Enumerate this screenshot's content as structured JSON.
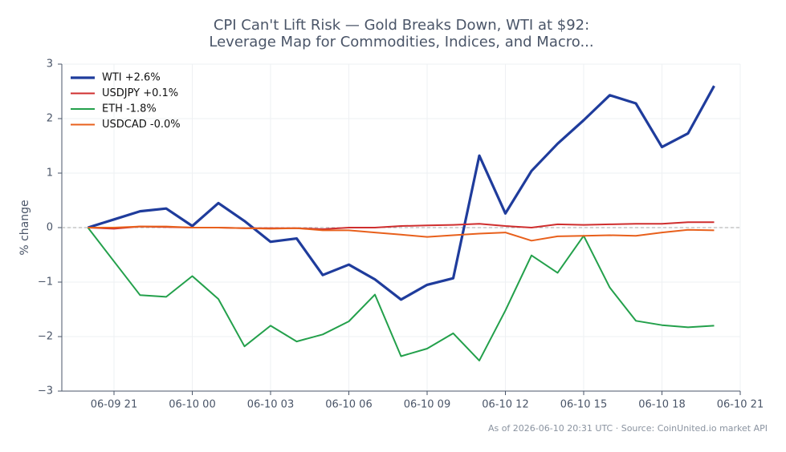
{
  "chart_data": {
    "type": "line",
    "title": [
      "CPI Can't Lift Risk — Gold Breaks Down, WTI at $92:",
      "Leverage Map for Commodities, Indices, and Macro..."
    ],
    "ylabel": "% change",
    "footer": "As of 2026-06-10 20:31 UTC · Source: CoinUnited.io market API",
    "x": [
      "06-09 20",
      "06-09 21",
      "06-09 22",
      "06-09 23",
      "06-10 00",
      "06-10 01",
      "06-10 02",
      "06-10 03",
      "06-10 04",
      "06-10 05",
      "06-10 06",
      "06-10 07",
      "06-10 08",
      "06-10 09",
      "06-10 10",
      "06-10 11",
      "06-10 12",
      "06-10 13",
      "06-10 14",
      "06-10 15",
      "06-10 16",
      "06-10 17",
      "06-10 18",
      "06-10 19",
      "06-10 20"
    ],
    "xlim": [
      "06-09 19",
      "06-10 21"
    ],
    "xticks": [
      "06-09 21",
      "06-10 00",
      "06-10 03",
      "06-10 06",
      "06-10 09",
      "06-10 12",
      "06-10 15",
      "06-10 18",
      "06-10 21"
    ],
    "ylim": [
      -3,
      3
    ],
    "yticks": [
      {
        "value": -3,
        "label": "−3"
      },
      {
        "value": -2,
        "label": "−2"
      },
      {
        "value": -1,
        "label": "−1"
      },
      0,
      1,
      2,
      3
    ],
    "grid": true,
    "hline": 0,
    "legend": "upper left",
    "series": [
      {
        "name": "WTI +2.6%",
        "color": "#1f3c9c",
        "width": 3.2,
        "values": [
          0,
          0.15,
          0.3,
          0.35,
          0.03,
          0.45,
          0.12,
          -0.26,
          -0.2,
          -0.87,
          -0.68,
          -0.95,
          -1.32,
          -1.05,
          -0.93,
          1.32,
          0.26,
          1.04,
          1.54,
          1.97,
          2.43,
          2.28,
          1.48,
          1.73,
          2.6
        ]
      },
      {
        "name": "USDJPY +0.1%",
        "color": "#cf2e2e",
        "width": 2,
        "values": [
          0,
          -0.02,
          0.02,
          0.01,
          0,
          0,
          -0.01,
          -0.01,
          -0.01,
          -0.03,
          0,
          0,
          0.03,
          0.04,
          0.05,
          0.07,
          0.03,
          0,
          0.06,
          0.05,
          0.06,
          0.07,
          0.07,
          0.1,
          0.1
        ]
      },
      {
        "name": "ETH -1.8%",
        "color": "#23a04b",
        "width": 2,
        "values": [
          0,
          -0.62,
          -1.24,
          -1.27,
          -0.89,
          -1.31,
          -2.18,
          -1.8,
          -2.09,
          -1.96,
          -1.72,
          -1.23,
          -2.36,
          -2.22,
          -1.94,
          -2.44,
          -1.52,
          -0.51,
          -0.83,
          -0.15,
          -1.1,
          -1.71,
          -1.79,
          -1.83,
          -1.8
        ]
      },
      {
        "name": "USDCAD -0.0%",
        "color": "#e8601c",
        "width": 2,
        "values": [
          0,
          0,
          0.02,
          0.02,
          0,
          0,
          -0.01,
          -0.02,
          -0.01,
          -0.05,
          -0.05,
          -0.09,
          -0.13,
          -0.17,
          -0.14,
          -0.11,
          -0.09,
          -0.24,
          -0.16,
          -0.15,
          -0.14,
          -0.15,
          -0.09,
          -0.04,
          -0.05
        ]
      }
    ]
  }
}
